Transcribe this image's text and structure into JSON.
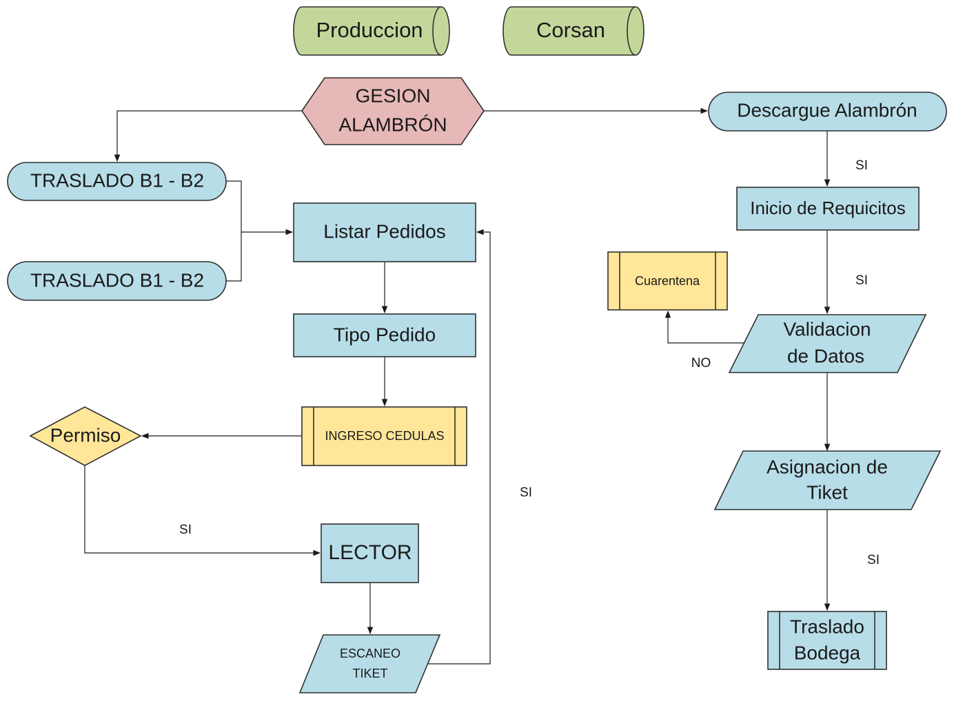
{
  "colors": {
    "blue": "#b7dde8",
    "green": "#c4d79b",
    "yellow": "#ffe699",
    "pink": "#e6b8b7",
    "line": "#1a1a1a"
  },
  "lanes": {
    "produccion": "Produccion",
    "corsan": "Corsan"
  },
  "nodes": {
    "gesion": [
      "GESION",
      "ALAMBRÓN"
    ],
    "traslado_1": "TRASLADO B1 - B2",
    "traslado_2": "TRASLADO B1 - B2",
    "listar_pedidos": "Listar Pedidos",
    "tipo_pedido": "Tipo Pedido",
    "ingreso_cedulas": "INGRESO CEDULAS",
    "permiso": "Permiso",
    "lector": "LECTOR",
    "escaneo_tiket": [
      "ESCANEO",
      "TIKET"
    ],
    "descargue": "Descargue Alambrón",
    "inicio_requicitos": "Inicio de Requicitos",
    "cuarentena": "Cuarentena",
    "validacion": [
      "Validacion",
      "de Datos"
    ],
    "asignacion": [
      "Asignacion de",
      "Tiket"
    ],
    "traslado_bodega": [
      "Traslado",
      "Bodega"
    ]
  },
  "edge_labels": {
    "si_descargue": "SI",
    "si_inicio": "SI",
    "no_validacion": "NO",
    "si_asignacion": "SI",
    "si_permiso": "SI",
    "si_escaneo": "SI"
  }
}
